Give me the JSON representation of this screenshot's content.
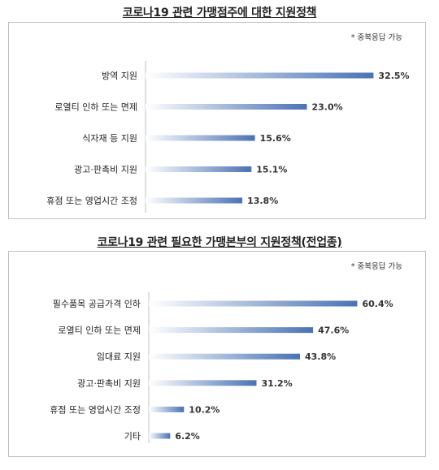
{
  "chart_data": [
    {
      "type": "bar",
      "orientation": "horizontal",
      "title": "코로나19 관련 가맹점주에 대한 지원정책",
      "note": "* 중복응답 가능",
      "categories": [
        "방역 지원",
        "로열티 인하 또는 면제",
        "식자재 등 지원",
        "광고·판촉비 지원",
        "휴점 또는 영업시간 조정"
      ],
      "values": [
        32.5,
        23.0,
        15.6,
        15.1,
        13.8
      ],
      "value_labels": [
        "32.5%",
        "23.0%",
        "15.6%",
        "15.1%",
        "13.8%"
      ],
      "unit": "%",
      "xlim": [
        0,
        35
      ],
      "grid": false,
      "legend": "none",
      "bar_color": "#4a72b5"
    },
    {
      "type": "bar",
      "orientation": "horizontal",
      "title": "코로나19 관련 필요한 가맹본부의 지원정책(전업종)",
      "note": "* 중복응답 가능",
      "categories": [
        "필수품목 공급가격 인하",
        "로열티 인하 또는 면제",
        "임대료 지원",
        "광고·판촉비 지원",
        "휴점 또는 영업시간 조정",
        "기타"
      ],
      "values": [
        60.4,
        47.6,
        43.8,
        31.2,
        10.2,
        6.2
      ],
      "value_labels": [
        "60.4%",
        "47.6%",
        "43.8%",
        "31.2%",
        "10.2%",
        "6.2%"
      ],
      "unit": "%",
      "xlim": [
        0,
        65
      ],
      "grid": false,
      "legend": "none",
      "bar_color": "#4a72b5"
    }
  ]
}
